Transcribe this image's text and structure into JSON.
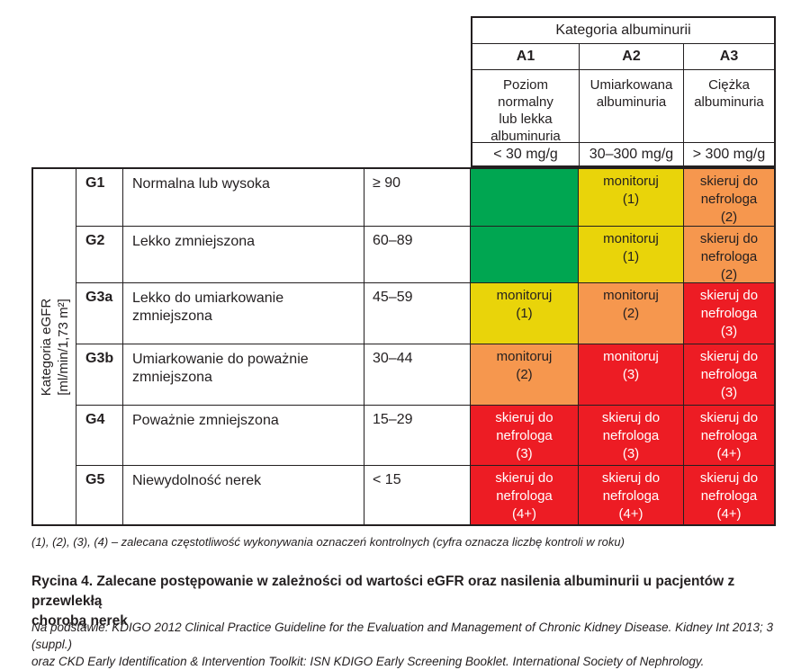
{
  "palette": {
    "green": "#00a651",
    "yellow": "#e9d40a",
    "orange": "#f6974e",
    "red": "#ed1c24",
    "border": "#231f20",
    "text_on_red": "#ffffff"
  },
  "header": {
    "title": "Kategoria albuminurii",
    "columns": [
      {
        "code": "A1",
        "description": "Poziom\nnormalny\nlub lekka\nalbuminuria",
        "range": "< 30 mg/g"
      },
      {
        "code": "A2",
        "description": "Umiarkowana\nalbuminuria",
        "range": "30–300 mg/g"
      },
      {
        "code": "A3",
        "description": "Ciężka\nalbuminuria",
        "range": "> 300 mg/g"
      }
    ]
  },
  "egfr_axis": {
    "label": "Kategoria eGFR\n[ml/min/1,73 m²]"
  },
  "rows": [
    {
      "code": "G1",
      "description": "Normalna lub wysoka",
      "range": "≥ 90",
      "cells": [
        {
          "text": "",
          "color": "green"
        },
        {
          "text": "monitoruj\n(1)",
          "color": "yellow"
        },
        {
          "text": "skieruj do\nnefrologa\n(2)",
          "color": "orange"
        }
      ]
    },
    {
      "code": "G2",
      "description": "Lekko zmniejszona",
      "range": "60–89",
      "cells": [
        {
          "text": "",
          "color": "green"
        },
        {
          "text": "monitoruj\n(1)",
          "color": "yellow"
        },
        {
          "text": "skieruj do\nnefrologa\n(2)",
          "color": "orange"
        }
      ]
    },
    {
      "code": "G3a",
      "description": "Lekko do umiarkowanie zmniejszona",
      "range": "45–59",
      "cells": [
        {
          "text": "monitoruj\n(1)",
          "color": "yellow"
        },
        {
          "text": "monitoruj\n(2)",
          "color": "orange"
        },
        {
          "text": "skieruj do\nnefrologa\n(3)",
          "color": "red"
        }
      ]
    },
    {
      "code": "G3b",
      "description": "Umiarkowanie do poważnie zmniejszona",
      "range": "30–44",
      "cells": [
        {
          "text": "monitoruj\n(2)",
          "color": "orange"
        },
        {
          "text": "monitoruj\n(3)",
          "color": "red"
        },
        {
          "text": "skieruj do\nnefrologa\n(3)",
          "color": "red"
        }
      ]
    },
    {
      "code": "G4",
      "description": "Poważnie zmniejszona",
      "range": "15–29",
      "cells": [
        {
          "text": "skieruj do\nnefrologa\n(3)",
          "color": "red"
        },
        {
          "text": "skieruj do\nnefrologa\n(3)",
          "color": "red"
        },
        {
          "text": "skieruj do\nnefrologa\n(4+)",
          "color": "red"
        }
      ]
    },
    {
      "code": "G5",
      "description": "Niewydolność nerek",
      "range": "< 15",
      "cells": [
        {
          "text": "skieruj do\nnefrologa\n(4+)",
          "color": "red"
        },
        {
          "text": "skieruj do\nnefrologa\n(4+)",
          "color": "red"
        },
        {
          "text": "skieruj do\nnefrologa\n(4+)",
          "color": "red"
        }
      ]
    }
  ],
  "footnote": "(1), (2), (3), (4) – zalecana częstotliwość wykonywania oznaczeń kontrolnych (cyfra oznacza liczbę kontroli w roku)",
  "caption": "Rycina 4. Zalecane postępowanie w zależności od wartości eGFR oraz nasilenia albuminurii u pacjentów z przewlekłą\nchorobą nerek",
  "source": "Na podstawie: KDIGO 2012 Clinical Practice Guideline for the Evaluation and Management of Chronic Kidney Disease. Kidney Int 2013; 3 (suppl.)\noraz CKD Early Identification & Intervention Toolkit: ISN KDIGO Early Screening Booklet. International Society of Nephrology."
}
